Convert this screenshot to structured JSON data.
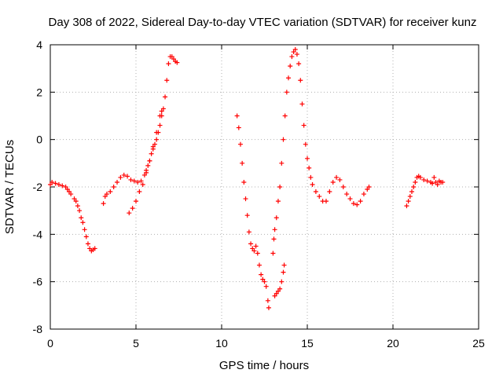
{
  "chart_data": {
    "type": "scatter",
    "title": "Day 308 of 2022, Sidereal Day-to-day VTEC variation (SDTVAR) for receiver kunz",
    "xlabel": "GPS time / hours",
    "ylabel": "SDTVAR / TECUs",
    "xlim": [
      0,
      25
    ],
    "ylim": [
      -8,
      4
    ],
    "xticks": [
      0,
      5,
      10,
      15,
      20,
      25
    ],
    "yticks": [
      -8,
      -6,
      -4,
      -2,
      0,
      2,
      4
    ],
    "grid": true,
    "marker": "+",
    "color": "#ff0000",
    "series": [
      {
        "points": [
          [
            0.0,
            -1.9
          ],
          [
            0.1,
            -1.8
          ],
          [
            0.3,
            -1.85
          ],
          [
            0.5,
            -1.9
          ],
          [
            0.7,
            -1.95
          ],
          [
            0.9,
            -2.0
          ],
          [
            1.0,
            -2.1
          ],
          [
            1.1,
            -2.2
          ],
          [
            1.2,
            -2.3
          ],
          [
            1.4,
            -2.5
          ],
          [
            1.5,
            -2.6
          ],
          [
            1.6,
            -2.8
          ],
          [
            1.7,
            -3.0
          ],
          [
            1.8,
            -3.3
          ],
          [
            1.9,
            -3.5
          ],
          [
            2.0,
            -3.8
          ],
          [
            2.1,
            -4.1
          ],
          [
            2.2,
            -4.4
          ],
          [
            2.3,
            -4.6
          ],
          [
            2.4,
            -4.7
          ],
          [
            2.5,
            -4.65
          ],
          [
            2.6,
            -4.6
          ]
        ]
      },
      {
        "points": [
          [
            3.1,
            -2.7
          ],
          [
            3.2,
            -2.4
          ],
          [
            3.3,
            -2.3
          ],
          [
            3.5,
            -2.2
          ],
          [
            3.7,
            -2.0
          ],
          [
            3.9,
            -1.8
          ],
          [
            4.1,
            -1.6
          ],
          [
            4.3,
            -1.5
          ],
          [
            4.5,
            -1.55
          ],
          [
            4.7,
            -1.7
          ],
          [
            4.9,
            -1.75
          ],
          [
            5.1,
            -1.8
          ],
          [
            5.3,
            -1.75
          ],
          [
            5.5,
            -1.5
          ],
          [
            5.6,
            -1.3
          ],
          [
            5.7,
            -1.1
          ],
          [
            5.8,
            -0.9
          ],
          [
            5.9,
            -0.6
          ],
          [
            6.0,
            -0.4
          ],
          [
            6.1,
            -0.2
          ],
          [
            6.2,
            0.0
          ],
          [
            6.3,
            0.3
          ],
          [
            6.4,
            0.6
          ],
          [
            6.5,
            1.0
          ],
          [
            6.6,
            1.3
          ],
          [
            6.7,
            1.8
          ],
          [
            6.8,
            2.5
          ],
          [
            6.9,
            3.2
          ],
          [
            7.0,
            3.5
          ],
          [
            7.1,
            3.5
          ],
          [
            7.2,
            3.4
          ],
          [
            7.3,
            3.3
          ],
          [
            7.4,
            3.25
          ]
        ]
      },
      {
        "points": [
          [
            4.6,
            -3.1
          ],
          [
            4.8,
            -2.9
          ],
          [
            5.0,
            -2.6
          ],
          [
            5.2,
            -2.2
          ],
          [
            5.4,
            -1.9
          ],
          [
            5.6,
            -1.4
          ],
          [
            5.8,
            -0.9
          ],
          [
            6.0,
            -0.3
          ],
          [
            6.2,
            0.3
          ],
          [
            6.4,
            1.0
          ],
          [
            6.5,
            1.2
          ]
        ]
      },
      {
        "points": [
          [
            10.9,
            1.0
          ],
          [
            11.0,
            0.5
          ],
          [
            11.1,
            -0.2
          ],
          [
            11.2,
            -1.0
          ],
          [
            11.3,
            -1.8
          ],
          [
            11.4,
            -2.5
          ],
          [
            11.5,
            -3.2
          ],
          [
            11.6,
            -3.9
          ],
          [
            11.7,
            -4.4
          ],
          [
            11.8,
            -4.6
          ],
          [
            11.9,
            -4.7
          ],
          [
            12.0,
            -4.5
          ],
          [
            12.1,
            -4.8
          ],
          [
            12.2,
            -5.3
          ],
          [
            12.3,
            -5.7
          ],
          [
            12.4,
            -5.9
          ],
          [
            12.5,
            -6.0
          ],
          [
            12.6,
            -6.2
          ],
          [
            12.7,
            -6.8
          ],
          [
            12.75,
            -7.1
          ]
        ]
      },
      {
        "points": [
          [
            13.0,
            -4.8
          ],
          [
            13.05,
            -4.2
          ],
          [
            13.1,
            -3.8
          ],
          [
            13.2,
            -3.3
          ],
          [
            13.3,
            -2.6
          ],
          [
            13.4,
            -2.0
          ],
          [
            13.5,
            -1.0
          ],
          [
            13.6,
            0.0
          ],
          [
            13.7,
            1.0
          ],
          [
            13.8,
            2.0
          ],
          [
            13.9,
            2.6
          ],
          [
            14.0,
            3.1
          ],
          [
            14.1,
            3.5
          ],
          [
            14.2,
            3.7
          ],
          [
            14.3,
            3.8
          ],
          [
            14.4,
            3.6
          ],
          [
            14.5,
            3.2
          ],
          [
            14.6,
            2.5
          ],
          [
            14.7,
            1.5
          ],
          [
            14.8,
            0.6
          ],
          [
            14.9,
            -0.2
          ],
          [
            15.0,
            -0.8
          ],
          [
            15.1,
            -1.2
          ],
          [
            15.2,
            -1.6
          ],
          [
            15.3,
            -1.9
          ],
          [
            15.5,
            -2.2
          ],
          [
            15.7,
            -2.4
          ],
          [
            15.9,
            -2.6
          ],
          [
            16.1,
            -2.6
          ],
          [
            16.3,
            -2.2
          ],
          [
            16.5,
            -1.8
          ],
          [
            16.7,
            -1.6
          ],
          [
            16.9,
            -1.7
          ],
          [
            17.1,
            -2.0
          ],
          [
            17.3,
            -2.3
          ],
          [
            17.5,
            -2.5
          ],
          [
            17.7,
            -2.7
          ],
          [
            17.9,
            -2.75
          ],
          [
            18.1,
            -2.6
          ],
          [
            18.3,
            -2.3
          ],
          [
            18.5,
            -2.1
          ],
          [
            18.6,
            -2.0
          ]
        ]
      },
      {
        "points": [
          [
            13.1,
            -6.6
          ],
          [
            13.2,
            -6.5
          ],
          [
            13.3,
            -6.4
          ],
          [
            13.4,
            -6.3
          ],
          [
            13.5,
            -6.0
          ],
          [
            13.6,
            -5.6
          ],
          [
            13.65,
            -5.3
          ]
        ]
      },
      {
        "points": [
          [
            20.8,
            -2.8
          ],
          [
            20.9,
            -2.6
          ],
          [
            21.0,
            -2.4
          ],
          [
            21.1,
            -2.2
          ],
          [
            21.2,
            -2.0
          ],
          [
            21.3,
            -1.8
          ],
          [
            21.4,
            -1.6
          ],
          [
            21.5,
            -1.55
          ],
          [
            21.6,
            -1.6
          ],
          [
            21.8,
            -1.7
          ],
          [
            22.0,
            -1.75
          ],
          [
            22.2,
            -1.8
          ],
          [
            22.3,
            -1.85
          ],
          [
            22.4,
            -1.6
          ],
          [
            22.5,
            -1.8
          ],
          [
            22.6,
            -1.9
          ],
          [
            22.7,
            -1.75
          ],
          [
            22.8,
            -1.8
          ],
          [
            22.9,
            -1.8
          ]
        ]
      }
    ]
  }
}
